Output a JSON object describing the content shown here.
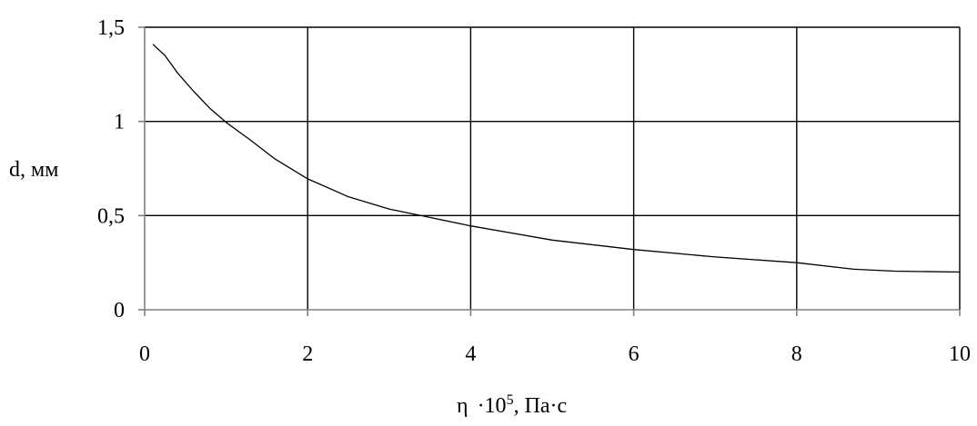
{
  "chart_data": {
    "type": "line",
    "title": "",
    "ylabel": "d, мм",
    "xlabel": {
      "symbol": "η",
      "factor_base": "·10",
      "factor_exp": "5",
      "unit": ", Па·с"
    },
    "xlim": [
      0,
      10
    ],
    "ylim": [
      0,
      1.5
    ],
    "x_ticks": [
      0,
      2,
      4,
      6,
      8,
      10
    ],
    "x_tick_labels": [
      "0",
      "2",
      "4",
      "6",
      "8",
      "10"
    ],
    "y_ticks": [
      0,
      0.5,
      1,
      1.5
    ],
    "y_tick_labels": [
      "0",
      "0,5",
      "1",
      "1,5"
    ],
    "grid": true,
    "legend": false,
    "line_color": "#000000",
    "grid_color": "#000000",
    "axis_color": "#808080",
    "series": [
      {
        "x": [
          0.1,
          0.25,
          0.4,
          0.6,
          0.8,
          1.0,
          1.3,
          1.6,
          2.0,
          2.5,
          3.0,
          3.5,
          4.0,
          5.0,
          6.0,
          7.0,
          8.0,
          8.7,
          9.2,
          10.0
        ],
        "values": [
          1.41,
          1.35,
          1.26,
          1.16,
          1.07,
          0.995,
          0.9,
          0.8,
          0.695,
          0.6,
          0.535,
          0.49,
          0.445,
          0.37,
          0.32,
          0.28,
          0.25,
          0.215,
          0.205,
          0.2
        ]
      }
    ]
  }
}
